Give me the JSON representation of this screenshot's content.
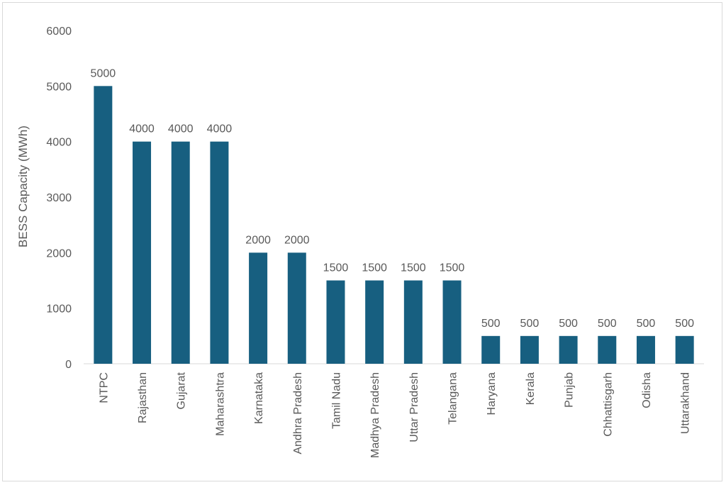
{
  "chart_data": {
    "type": "bar",
    "title": "",
    "xlabel": "",
    "ylabel": "BESS Capacity (MWh)",
    "ylim": [
      0,
      6000
    ],
    "yticks": [
      0,
      1000,
      2000,
      3000,
      4000,
      5000,
      6000
    ],
    "grid": false,
    "categories": [
      "NTPC",
      "Rajasthan",
      "Gujarat",
      "Maharashtra",
      "Karnataka",
      "Andhra Pradesh",
      "Tamil Nadu",
      "Madhya Pradesh",
      "Uttar Pradesh",
      "Telangana",
      "Haryana",
      "Kerala",
      "Punjab",
      "Chhattisgarh",
      "Odisha",
      "Uttarakhand"
    ],
    "values": [
      5000,
      4000,
      4000,
      4000,
      2000,
      2000,
      1500,
      1500,
      1500,
      1500,
      500,
      500,
      500,
      500,
      500,
      500
    ],
    "bar_color": "#175f80",
    "data_labels": true
  }
}
